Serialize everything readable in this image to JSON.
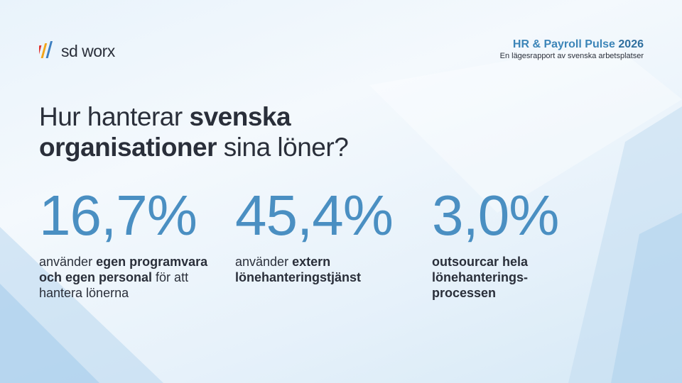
{
  "brand": {
    "logo_text": "sd worx"
  },
  "report": {
    "title_main": "HR & Payroll Pulse",
    "title_year": "2026",
    "subtitle": "En lägesrapport av svenska arbetsplatser"
  },
  "headline": {
    "part1": "Hur hanterar ",
    "part2_bold": "svenska",
    "part3_bold": "organisationer",
    "part4": " sina löner?"
  },
  "stats": [
    {
      "value": "16,7%",
      "text_pre": "använder ",
      "text_bold": "egen programvara och egen personal",
      "text_post": " för att hantera lönerna"
    },
    {
      "value": "45,4%",
      "text_pre": "använder ",
      "text_bold": "extern lönehanteringstjänst",
      "text_post": ""
    },
    {
      "value": "3,0%",
      "text_pre": "",
      "text_bold": "outsourcar hela lönehanterings-processen",
      "text_post": ""
    }
  ],
  "colors": {
    "accent": "#4a8fc2",
    "title_blue": "#3c85b8",
    "text": "#2a2f3a"
  }
}
